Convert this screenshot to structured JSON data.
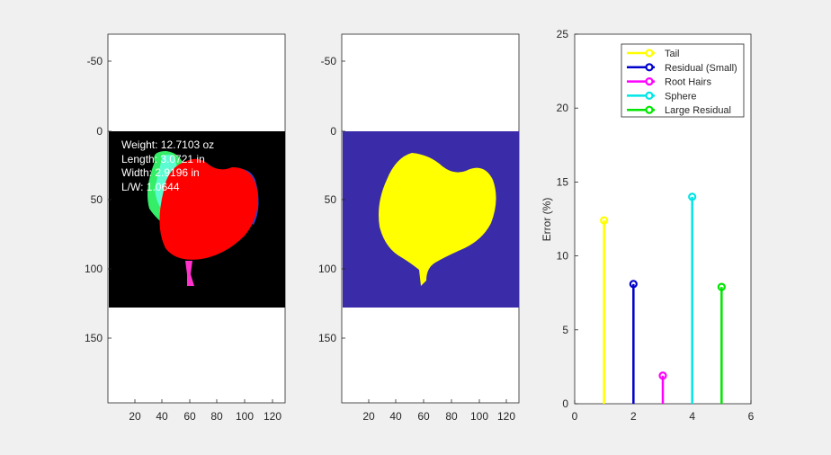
{
  "figure": {
    "background": "#f0f0f0"
  },
  "image_panel_1": {
    "y_ticks": [
      "-50",
      "0",
      "50",
      "100",
      "150"
    ],
    "x_ticks": [
      "20",
      "40",
      "60",
      "80",
      "100",
      "120"
    ],
    "annotations": [
      "Weight: 12.7103 oz",
      "Length: 3.0721 in",
      "Width: 2.9196 in",
      "L/W: 1.0644"
    ]
  },
  "image_panel_2": {
    "y_ticks": [
      "-50",
      "0",
      "50",
      "100",
      "150"
    ],
    "x_ticks": [
      "20",
      "40",
      "60",
      "80",
      "100",
      "120"
    ],
    "colors": {
      "background": "#3a2ba8",
      "mask": "#ffff00"
    }
  },
  "chart_data": {
    "type": "stem",
    "x": [
      1,
      2,
      3,
      4,
      5
    ],
    "series": [
      {
        "name": "Tail",
        "x": 1,
        "value": 12.4,
        "color": "#ffff00"
      },
      {
        "name": "Residual (Small)",
        "x": 2,
        "value": 8.1,
        "color": "#0000cc"
      },
      {
        "name": "Root Hairs",
        "x": 3,
        "value": 1.9,
        "color": "#ff00ff"
      },
      {
        "name": "Sphere",
        "x": 4,
        "value": 14.0,
        "color": "#00e6e6"
      },
      {
        "name": "Large Residual",
        "x": 5,
        "value": 7.9,
        "color": "#00e600"
      }
    ],
    "xlim": [
      0,
      6
    ],
    "ylim": [
      0,
      25
    ],
    "x_ticks": [
      "0",
      "2",
      "4",
      "6"
    ],
    "y_ticks": [
      "0",
      "5",
      "10",
      "15",
      "20",
      "25"
    ],
    "ylabel": "Error (%)",
    "legend_position": "top-right",
    "grid": false
  }
}
